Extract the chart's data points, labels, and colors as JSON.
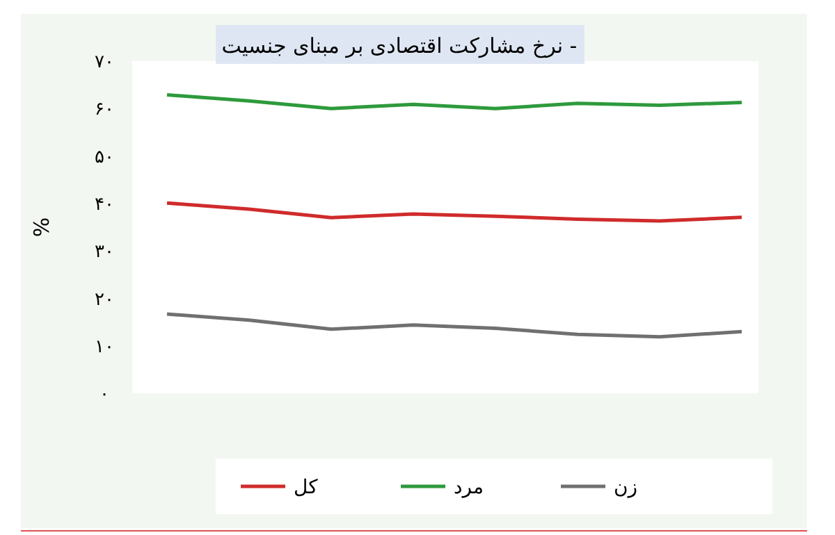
{
  "chart_data": {
    "type": "line",
    "title": "- نرخ مشارکت اقتصادی بر مبنای جنسیت",
    "ylabel": "%",
    "categories": [
      null,
      null,
      null,
      null,
      null,
      null,
      null,
      null
    ],
    "series": [
      {
        "name": "کل",
        "color": "#d02b2b",
        "values": [
          40.1,
          38.8,
          37.0,
          37.8,
          37.3,
          36.7,
          36.3,
          37.1
        ]
      },
      {
        "name": "مرد",
        "color": "#2e9a3c",
        "values": [
          62.9,
          61.6,
          60.0,
          60.9,
          60.0,
          61.1,
          60.7,
          61.3
        ]
      },
      {
        "name": "زن",
        "color": "#707070",
        "values": [
          16.7,
          15.4,
          13.5,
          14.4,
          13.7,
          12.4,
          11.9,
          13.0
        ]
      }
    ],
    "ylim": [
      0,
      70
    ],
    "yticks": [
      {
        "value": 0,
        "label": "۰"
      },
      {
        "value": 10,
        "label": "۱۰"
      },
      {
        "value": 20,
        "label": "۲۰"
      },
      {
        "value": 30,
        "label": "۳۰"
      },
      {
        "value": 40,
        "label": "۴۰"
      },
      {
        "value": 50,
        "label": "۵۰"
      },
      {
        "value": 60,
        "label": "۶۰"
      },
      {
        "value": 70,
        "label": "۷۰"
      }
    ],
    "legend": "bottom",
    "marker": "none",
    "line_style": "solid"
  }
}
